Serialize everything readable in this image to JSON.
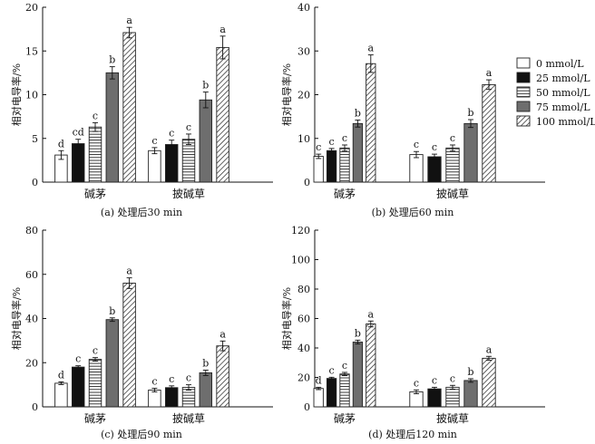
{
  "colors": {
    "axis": "#111111",
    "bar_stroke": "#222222",
    "fill_0": "#ffffff",
    "fill_25": "#111111",
    "fill_50": "#ffffff",
    "fill_75": "#6e6e6e",
    "fill_100": "#ffffff"
  },
  "legend": {
    "entries": [
      {
        "label": "0 mmol/L",
        "pattern": "white"
      },
      {
        "label": "25 mmol/L",
        "pattern": "black"
      },
      {
        "label": "50 mmol/L",
        "pattern": "horizontal-lines"
      },
      {
        "label": "75 mmol/L",
        "pattern": "gray"
      },
      {
        "label": "100 mmol/L",
        "pattern": "diagonal-hatch"
      }
    ]
  },
  "chart_data": [
    {
      "type": "bar",
      "caption": "(a) 处理后30 min",
      "ylabel": "相对电导率/%",
      "ylim": [
        0,
        20
      ],
      "yticks": [
        0,
        5,
        10,
        15,
        20
      ],
      "categories": [
        "碱茅",
        "披碱草"
      ],
      "series": [
        {
          "name": "0 mmol/L",
          "values": [
            3.1,
            3.6
          ],
          "errors": [
            0.5,
            0.35
          ],
          "letters": [
            "d",
            "c"
          ]
        },
        {
          "name": "25 mmol/L",
          "values": [
            4.4,
            4.3
          ],
          "errors": [
            0.5,
            0.5
          ],
          "letters": [
            "cd",
            "c"
          ]
        },
        {
          "name": "50 mmol/L",
          "values": [
            6.3,
            4.9
          ],
          "errors": [
            0.5,
            0.6
          ],
          "letters": [
            "c",
            "c"
          ]
        },
        {
          "name": "75 mmol/L",
          "values": [
            12.5,
            9.4
          ],
          "errors": [
            0.7,
            0.9
          ],
          "letters": [
            "b",
            "b"
          ]
        },
        {
          "name": "100 mmol/L",
          "values": [
            17.1,
            15.4
          ],
          "errors": [
            0.6,
            1.3
          ],
          "letters": [
            "a",
            "a"
          ]
        }
      ]
    },
    {
      "type": "bar",
      "caption": "(b) 处理后60 min",
      "ylabel": "相对电导率/%",
      "ylim": [
        0,
        40
      ],
      "yticks": [
        0,
        10,
        20,
        30,
        40
      ],
      "categories": [
        "碱茅",
        "披碱草"
      ],
      "series": [
        {
          "name": "0 mmol/L",
          "values": [
            5.9,
            6.3
          ],
          "errors": [
            0.5,
            0.7
          ],
          "letters": [
            "c",
            "c"
          ]
        },
        {
          "name": "25 mmol/L",
          "values": [
            7.2,
            5.8
          ],
          "errors": [
            0.5,
            0.6
          ],
          "letters": [
            "c",
            "c"
          ]
        },
        {
          "name": "50 mmol/L",
          "values": [
            7.8,
            7.8
          ],
          "errors": [
            0.7,
            0.7
          ],
          "letters": [
            "c",
            "c"
          ]
        },
        {
          "name": "75 mmol/L",
          "values": [
            13.4,
            13.4
          ],
          "errors": [
            0.8,
            0.9
          ],
          "letters": [
            "b",
            "b"
          ]
        },
        {
          "name": "100 mmol/L",
          "values": [
            27.1,
            22.3
          ],
          "errors": [
            2.0,
            1.1
          ],
          "letters": [
            "a",
            "a"
          ]
        }
      ]
    },
    {
      "type": "bar",
      "caption": "(c) 处理后90 min",
      "ylabel": "相对电导率/%",
      "ylim": [
        0,
        80
      ],
      "yticks": [
        0,
        20,
        40,
        60,
        80
      ],
      "categories": [
        "碱茅",
        "披碱草"
      ],
      "series": [
        {
          "name": "0 mmol/L",
          "values": [
            10.7,
            7.6
          ],
          "errors": [
            0.6,
            0.8
          ],
          "letters": [
            "d",
            "c"
          ]
        },
        {
          "name": "25 mmol/L",
          "values": [
            18.0,
            8.7
          ],
          "errors": [
            0.6,
            0.8
          ],
          "letters": [
            "c",
            "c"
          ]
        },
        {
          "name": "50 mmol/L",
          "values": [
            21.5,
            8.8
          ],
          "errors": [
            0.8,
            1.2
          ],
          "letters": [
            "c",
            "c"
          ]
        },
        {
          "name": "75 mmol/L",
          "values": [
            39.5,
            15.4
          ],
          "errors": [
            0.8,
            1.2
          ],
          "letters": [
            "b",
            "b"
          ]
        },
        {
          "name": "100 mmol/L",
          "values": [
            56.0,
            27.6
          ],
          "errors": [
            2.4,
            2.2
          ],
          "letters": [
            "a",
            "a"
          ]
        }
      ]
    },
    {
      "type": "bar",
      "caption": "(d) 处理后120 min",
      "ylabel": "相对电导率/%",
      "ylim": [
        0,
        120
      ],
      "yticks": [
        0,
        20,
        40,
        60,
        80,
        100,
        120
      ],
      "categories": [
        "碱茅",
        "披碱草"
      ],
      "series": [
        {
          "name": "0 mmol/L",
          "values": [
            12.5,
            10.2
          ],
          "errors": [
            0.8,
            1.3
          ],
          "letters": [
            "d",
            "c"
          ]
        },
        {
          "name": "25 mmol/L",
          "values": [
            19.3,
            12.2
          ],
          "errors": [
            0.8,
            1.1
          ],
          "letters": [
            "c",
            "c"
          ]
        },
        {
          "name": "50 mmol/L",
          "values": [
            22.3,
            13.3
          ],
          "errors": [
            1.1,
            1.3
          ],
          "letters": [
            "c",
            "c"
          ]
        },
        {
          "name": "75 mmol/L",
          "values": [
            44.0,
            17.9
          ],
          "errors": [
            1.3,
            1.2
          ],
          "letters": [
            "b",
            "b"
          ]
        },
        {
          "name": "100 mmol/L",
          "values": [
            56.3,
            33.0
          ],
          "errors": [
            2.0,
            1.3
          ],
          "letters": [
            "a",
            "a"
          ]
        }
      ]
    }
  ]
}
